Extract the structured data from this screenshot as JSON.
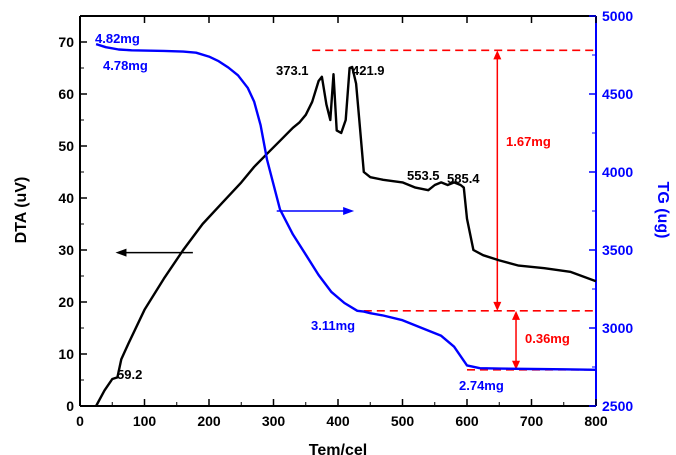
{
  "chart_data": {
    "type": "line",
    "xlabel": "Tem/cel",
    "ylabel_left": "DTA (uV)",
    "ylabel_right": "TG (ug)",
    "xlim": [
      0,
      800
    ],
    "ylim_left": [
      0,
      75
    ],
    "ylim_right": [
      2500,
      5000
    ],
    "x_ticks": [
      "0",
      "100",
      "200",
      "300",
      "400",
      "500",
      "600",
      "700",
      "800"
    ],
    "y_left_ticks": [
      "0",
      "10",
      "20",
      "30",
      "40",
      "50",
      "60",
      "70"
    ],
    "y_right_ticks": [
      "2500",
      "3000",
      "3500",
      "4000",
      "4500",
      "5000"
    ],
    "grid": false,
    "colors": {
      "dta": "#000000",
      "tg": "#0000ff",
      "annotation": "#ff0000",
      "right_axis": "#0000ff"
    },
    "series": [
      {
        "axis": "left",
        "x": [
          25,
          38,
          50,
          58,
          64,
          75,
          100,
          130,
          160,
          190,
          220,
          250,
          270,
          290,
          310,
          330,
          340,
          350,
          360,
          370,
          375,
          382,
          388,
          393,
          398,
          405,
          412,
          418,
          422,
          428,
          433,
          440,
          450,
          470,
          500,
          520,
          540,
          550,
          560,
          570,
          580,
          590,
          595,
          600,
          610,
          625,
          650,
          680,
          720,
          760,
          800
        ],
        "y": [
          0,
          3,
          5.2,
          5.5,
          9,
          12,
          18.5,
          24.5,
          30,
          35,
          39,
          43,
          46,
          48.5,
          51,
          53.5,
          54.5,
          56,
          58.5,
          62.5,
          63.3,
          58,
          55,
          63.8,
          53,
          52.5,
          55,
          65,
          65.2,
          62,
          55,
          45,
          44,
          43.5,
          43,
          42,
          41.5,
          42.5,
          43,
          42.5,
          43,
          42.5,
          42,
          36,
          30,
          29,
          28,
          27,
          26.5,
          25.8,
          24
        ]
      },
      {
        "axis": "right",
        "x": [
          25,
          40,
          60,
          80,
          100,
          130,
          160,
          180,
          200,
          215,
          230,
          245,
          260,
          270,
          280,
          290,
          310,
          330,
          350,
          370,
          390,
          410,
          430,
          440,
          450,
          470,
          500,
          530,
          560,
          580,
          600,
          620,
          650,
          700,
          750,
          800
        ],
        "y": [
          4820,
          4800,
          4785,
          4780,
          4778,
          4776,
          4772,
          4765,
          4740,
          4710,
          4670,
          4620,
          4540,
          4450,
          4300,
          4080,
          3760,
          3600,
          3470,
          3340,
          3230,
          3160,
          3110,
          3105,
          3095,
          3080,
          3050,
          3000,
          2950,
          2880,
          2760,
          2742,
          2740,
          2737,
          2735,
          2732
        ]
      }
    ],
    "annotations": {
      "peaks": [
        "59.2",
        "373.1",
        "421.9",
        "553.5",
        "585.4"
      ],
      "tg_masses": [
        "4.82mg",
        "4.78mg",
        "3.11mg",
        "2.74mg"
      ],
      "losses": [
        "1.67mg",
        "0.36mg"
      ]
    }
  }
}
